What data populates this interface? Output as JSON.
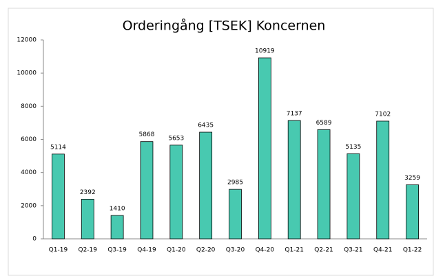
{
  "chart_data": {
    "type": "bar",
    "title": "Orderingång [TSEK] Koncernen",
    "categories": [
      "Q1-19",
      "Q2-19",
      "Q3-19",
      "Q4-19",
      "Q1-20",
      "Q2-20",
      "Q3-20",
      "Q4-20",
      "Q1-21",
      "Q2-21",
      "Q3-21",
      "Q4-21",
      "Q1-22"
    ],
    "values": [
      5114,
      2392,
      1410,
      5868,
      5653,
      6435,
      2985,
      10919,
      7137,
      6589,
      5135,
      7102,
      3259
    ],
    "color": "#48c9b0",
    "ylim": [
      0,
      12000
    ],
    "yticks": [
      0,
      2000,
      4000,
      6000,
      8000,
      10000,
      12000
    ],
    "grid": false
  }
}
